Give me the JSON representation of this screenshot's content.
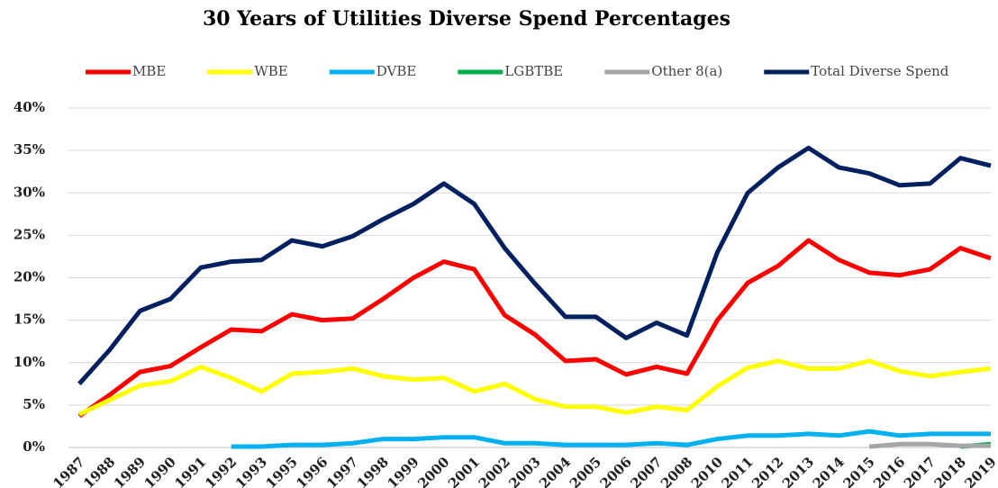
{
  "chart_data": {
    "type": "line",
    "title": "30 Years of Utilities Diverse Spend Percentages",
    "categories": [
      "1987",
      "1988",
      "1989",
      "1990",
      "1991",
      "1992",
      "1993",
      "1995",
      "1996",
      "1997",
      "1998",
      "1999",
      "2000",
      "2001",
      "2002",
      "2003",
      "2004",
      "2005",
      "2006",
      "2007",
      "2008",
      "2010",
      "2011",
      "2012",
      "2013",
      "2014",
      "2015",
      "2016",
      "2017",
      "2018",
      "2019"
    ],
    "series": [
      {
        "name": "MBE",
        "color": "#ff0000",
        "values": [
          3.7,
          6.2,
          8.9,
          9.6,
          11.8,
          13.9,
          13.7,
          15.7,
          15.0,
          15.2,
          17.5,
          20.0,
          21.9,
          21.0,
          15.6,
          13.3,
          10.2,
          10.4,
          8.6,
          9.5,
          8.7,
          15.0,
          19.4,
          21.4,
          24.4,
          22.1,
          20.6,
          20.3,
          21.0,
          23.5,
          22.3
        ]
      },
      {
        "name": "WBE",
        "color": "#ffff00",
        "values": [
          3.9,
          5.6,
          7.3,
          7.8,
          9.5,
          8.2,
          6.6,
          8.7,
          8.9,
          9.3,
          8.4,
          8.0,
          8.2,
          6.6,
          7.5,
          5.7,
          4.8,
          4.8,
          4.1,
          4.8,
          4.4,
          7.2,
          9.4,
          10.2,
          9.3,
          9.3,
          10.2,
          9.0,
          8.4,
          8.9,
          9.3
        ]
      },
      {
        "name": "DVBE",
        "color": "#00b0f0",
        "values": [
          null,
          null,
          null,
          null,
          null,
          0.1,
          0.1,
          0.3,
          0.3,
          0.5,
          1.0,
          1.0,
          1.2,
          1.2,
          0.5,
          0.5,
          0.3,
          0.3,
          0.3,
          0.5,
          0.3,
          1.0,
          1.4,
          1.4,
          1.6,
          1.4,
          1.9,
          1.4,
          1.6,
          1.6,
          1.6
        ]
      },
      {
        "name": "LGBTBE",
        "color": "#00b050",
        "values": [
          null,
          null,
          null,
          null,
          null,
          null,
          null,
          null,
          null,
          null,
          null,
          null,
          null,
          null,
          null,
          null,
          null,
          null,
          null,
          null,
          null,
          null,
          null,
          null,
          null,
          null,
          null,
          null,
          null,
          0.1,
          0.4
        ]
      },
      {
        "name": "Other 8(a)",
        "color": "#a6a6a6",
        "values": [
          null,
          null,
          null,
          null,
          null,
          null,
          null,
          null,
          null,
          null,
          null,
          null,
          null,
          null,
          null,
          null,
          null,
          null,
          null,
          null,
          null,
          null,
          null,
          null,
          null,
          null,
          0.1,
          0.4,
          0.4,
          0.2,
          0.2
        ]
      },
      {
        "name": "Total Diverse Spend",
        "color": "#002060",
        "values": [
          7.5,
          11.5,
          16.1,
          17.5,
          21.2,
          21.9,
          22.1,
          24.4,
          23.7,
          24.9,
          26.9,
          28.7,
          31.1,
          28.7,
          23.5,
          19.3,
          15.4,
          15.4,
          12.9,
          14.7,
          13.2,
          23.0,
          30.0,
          33.0,
          35.3,
          33.0,
          32.3,
          30.9,
          31.1,
          34.1,
          33.2
        ]
      }
    ],
    "ylim": [
      0,
      40
    ],
    "yticks": [
      {
        "value": 0,
        "label": "0%"
      },
      {
        "value": 5,
        "label": "5%"
      },
      {
        "value": 10,
        "label": "10%"
      },
      {
        "value": 15,
        "label": "15%"
      },
      {
        "value": 20,
        "label": "20%"
      },
      {
        "value": 25,
        "label": "25%"
      },
      {
        "value": 30,
        "label": "30%"
      },
      {
        "value": 35,
        "label": "35%"
      },
      {
        "value": 40,
        "label": "40%"
      }
    ],
    "grid": true,
    "legend": "top"
  }
}
